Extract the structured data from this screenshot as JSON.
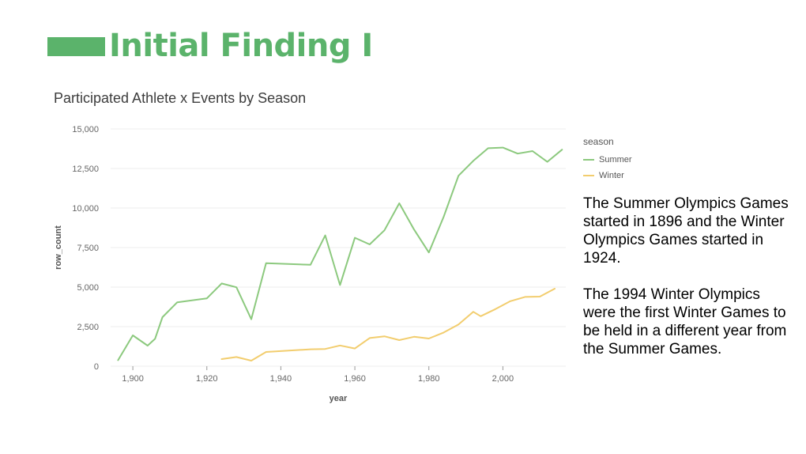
{
  "slide": {
    "title": "Initial Finding I",
    "accent_color": "#5bb36b"
  },
  "annotations": {
    "paragraph1": "The Summer Olympics Games started in 1896 and the Winter Olympics Games started in 1924.",
    "paragraph2": "The 1994 Winter Olympics were the first Winter Games to be held in a different year from the Summer Games."
  },
  "chart_data": {
    "type": "line",
    "title": "Participated Athlete x Events by Season",
    "xlabel": "year",
    "ylabel": "row_count",
    "xlim": [
      1894,
      2017
    ],
    "ylim": [
      0,
      15000
    ],
    "xticks": [
      1900,
      1920,
      1940,
      1960,
      1980,
      2000
    ],
    "xtick_labels": [
      "1,900",
      "1,920",
      "1,940",
      "1,960",
      "1,980",
      "2,000"
    ],
    "yticks": [
      0,
      2500,
      5000,
      7500,
      10000,
      12500,
      15000
    ],
    "ytick_labels": [
      "0",
      "2,500",
      "5,000",
      "7,500",
      "10,000",
      "12,500",
      "15,000"
    ],
    "legend": {
      "title": "season",
      "position": "right"
    },
    "series": [
      {
        "name": "Summer",
        "color": "#8cc97e",
        "x": [
          1896,
          1900,
          1904,
          1906,
          1908,
          1912,
          1920,
          1924,
          1928,
          1932,
          1936,
          1948,
          1952,
          1956,
          1960,
          1964,
          1968,
          1972,
          1976,
          1980,
          1984,
          1988,
          1992,
          1996,
          2000,
          2004,
          2008,
          2012,
          2016
        ],
        "values": [
          380,
          1950,
          1300,
          1730,
          3100,
          4040,
          4290,
          5230,
          4990,
          2970,
          6510,
          6410,
          8270,
          5130,
          8120,
          7700,
          8590,
          10300,
          8640,
          7190,
          9450,
          12040,
          12980,
          13780,
          13820,
          13440,
          13600,
          12920,
          13690
        ]
      },
      {
        "name": "Winter",
        "color": "#f2cd6e",
        "x": [
          1924,
          1928,
          1932,
          1936,
          1948,
          1952,
          1956,
          1960,
          1964,
          1968,
          1972,
          1976,
          1980,
          1984,
          1988,
          1992,
          1994,
          1998,
          2002,
          2006,
          2010,
          2014
        ],
        "values": [
          450,
          580,
          350,
          900,
          1070,
          1090,
          1310,
          1120,
          1780,
          1890,
          1650,
          1860,
          1750,
          2130,
          2640,
          3440,
          3160,
          3610,
          4110,
          4380,
          4400,
          4900
        ]
      }
    ]
  }
}
